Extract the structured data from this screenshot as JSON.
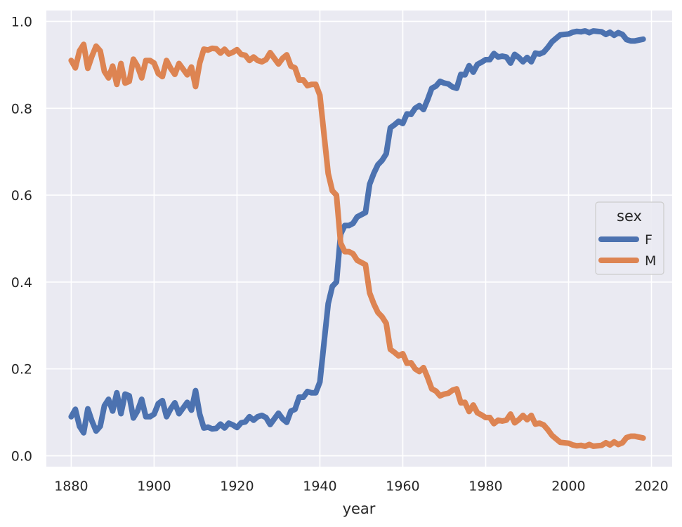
{
  "chart_data": {
    "type": "line",
    "xlabel": "year",
    "ylabel": "",
    "xlim": [
      1874,
      2025
    ],
    "ylim": [
      -0.025,
      1.025
    ],
    "xticks": [
      1880,
      1900,
      1920,
      1940,
      1960,
      1980,
      2000,
      2020
    ],
    "yticks": [
      0.0,
      0.2,
      0.4,
      0.6,
      0.8,
      1.0
    ],
    "xtick_labels": [
      "1880",
      "1900",
      "1920",
      "1940",
      "1960",
      "1980",
      "2000",
      "2020"
    ],
    "ytick_labels": [
      "0.0",
      "0.2",
      "0.4",
      "0.6",
      "0.8",
      "1.0"
    ],
    "grid": true,
    "legend": {
      "title": "sex",
      "placement": "center-right"
    },
    "colors": {
      "F": "#4c72b0",
      "M": "#dd8452",
      "background": "#eaeaf2",
      "grid": "#ffffff"
    },
    "series": [
      {
        "name": "F",
        "x": [
          1880,
          1881,
          1882,
          1883,
          1884,
          1885,
          1886,
          1887,
          1888,
          1889,
          1890,
          1891,
          1892,
          1893,
          1894,
          1895,
          1896,
          1897,
          1898,
          1899,
          1900,
          1901,
          1902,
          1903,
          1904,
          1905,
          1906,
          1907,
          1908,
          1909,
          1910,
          1911,
          1912,
          1913,
          1914,
          1915,
          1916,
          1917,
          1918,
          1919,
          1920,
          1921,
          1922,
          1923,
          1924,
          1925,
          1926,
          1927,
          1928,
          1929,
          1930,
          1931,
          1932,
          1933,
          1934,
          1935,
          1936,
          1937,
          1938,
          1939,
          1940,
          1941,
          1942,
          1943,
          1944,
          1945,
          1946,
          1947,
          1948,
          1949,
          1950,
          1951,
          1952,
          1953,
          1954,
          1955,
          1956,
          1957,
          1958,
          1959,
          1960,
          1961,
          1962,
          1963,
          1964,
          1965,
          1966,
          1967,
          1968,
          1969,
          1970,
          1971,
          1972,
          1973,
          1974,
          1975,
          1976,
          1977,
          1978,
          1979,
          1980,
          1981,
          1982,
          1983,
          1984,
          1985,
          1986,
          1987,
          1988,
          1989,
          1990,
          1991,
          1992,
          1993,
          1994,
          1995,
          1996,
          1997,
          1998,
          1999,
          2000,
          2001,
          2002,
          2003,
          2004,
          2005,
          2006,
          2007,
          2008,
          2009,
          2010,
          2011,
          2012,
          2013,
          2014,
          2015,
          2016,
          2017,
          2018
        ],
        "values": [
          0.09,
          0.107,
          0.068,
          0.053,
          0.108,
          0.08,
          0.057,
          0.068,
          0.115,
          0.13,
          0.103,
          0.145,
          0.097,
          0.142,
          0.138,
          0.087,
          0.103,
          0.13,
          0.09,
          0.09,
          0.096,
          0.12,
          0.127,
          0.09,
          0.108,
          0.122,
          0.097,
          0.11,
          0.123,
          0.105,
          0.15,
          0.096,
          0.064,
          0.066,
          0.062,
          0.063,
          0.073,
          0.064,
          0.075,
          0.071,
          0.065,
          0.076,
          0.078,
          0.09,
          0.082,
          0.09,
          0.093,
          0.088,
          0.072,
          0.085,
          0.098,
          0.085,
          0.077,
          0.103,
          0.107,
          0.135,
          0.135,
          0.148,
          0.145,
          0.145,
          0.17,
          0.26,
          0.35,
          0.39,
          0.4,
          0.51,
          0.53,
          0.53,
          0.535,
          0.55,
          0.555,
          0.56,
          0.625,
          0.65,
          0.67,
          0.68,
          0.695,
          0.755,
          0.762,
          0.77,
          0.765,
          0.787,
          0.786,
          0.8,
          0.806,
          0.797,
          0.82,
          0.846,
          0.851,
          0.862,
          0.858,
          0.856,
          0.849,
          0.846,
          0.878,
          0.877,
          0.898,
          0.883,
          0.901,
          0.906,
          0.912,
          0.912,
          0.926,
          0.918,
          0.92,
          0.918,
          0.904,
          0.924,
          0.917,
          0.907,
          0.917,
          0.907,
          0.927,
          0.925,
          0.929,
          0.94,
          0.953,
          0.961,
          0.969,
          0.97,
          0.971,
          0.975,
          0.977,
          0.976,
          0.978,
          0.974,
          0.978,
          0.977,
          0.976,
          0.97,
          0.975,
          0.968,
          0.974,
          0.97,
          0.958,
          0.955,
          0.955,
          0.957,
          0.959
        ]
      },
      {
        "name": "M",
        "x": [
          1880,
          1881,
          1882,
          1883,
          1884,
          1885,
          1886,
          1887,
          1888,
          1889,
          1890,
          1891,
          1892,
          1893,
          1894,
          1895,
          1896,
          1897,
          1898,
          1899,
          1900,
          1901,
          1902,
          1903,
          1904,
          1905,
          1906,
          1907,
          1908,
          1909,
          1910,
          1911,
          1912,
          1913,
          1914,
          1915,
          1916,
          1917,
          1918,
          1919,
          1920,
          1921,
          1922,
          1923,
          1924,
          1925,
          1926,
          1927,
          1928,
          1929,
          1930,
          1931,
          1932,
          1933,
          1934,
          1935,
          1936,
          1937,
          1938,
          1939,
          1940,
          1941,
          1942,
          1943,
          1944,
          1945,
          1946,
          1947,
          1948,
          1949,
          1950,
          1951,
          1952,
          1953,
          1954,
          1955,
          1956,
          1957,
          1958,
          1959,
          1960,
          1961,
          1962,
          1963,
          1964,
          1965,
          1966,
          1967,
          1968,
          1969,
          1970,
          1971,
          1972,
          1973,
          1974,
          1975,
          1976,
          1977,
          1978,
          1979,
          1980,
          1981,
          1982,
          1983,
          1984,
          1985,
          1986,
          1987,
          1988,
          1989,
          1990,
          1991,
          1992,
          1993,
          1994,
          1995,
          1996,
          1997,
          1998,
          1999,
          2000,
          2001,
          2002,
          2003,
          2004,
          2005,
          2006,
          2007,
          2008,
          2009,
          2010,
          2011,
          2012,
          2013,
          2014,
          2015,
          2016,
          2017,
          2018
        ],
        "values": [
          0.91,
          0.893,
          0.932,
          0.947,
          0.892,
          0.92,
          0.943,
          0.932,
          0.885,
          0.87,
          0.897,
          0.855,
          0.903,
          0.858,
          0.862,
          0.913,
          0.897,
          0.87,
          0.91,
          0.91,
          0.904,
          0.88,
          0.873,
          0.91,
          0.892,
          0.878,
          0.903,
          0.89,
          0.877,
          0.895,
          0.85,
          0.904,
          0.936,
          0.934,
          0.938,
          0.937,
          0.927,
          0.936,
          0.925,
          0.929,
          0.935,
          0.924,
          0.922,
          0.91,
          0.918,
          0.91,
          0.907,
          0.912,
          0.928,
          0.915,
          0.902,
          0.915,
          0.923,
          0.897,
          0.893,
          0.865,
          0.865,
          0.852,
          0.855,
          0.855,
          0.83,
          0.74,
          0.65,
          0.61,
          0.6,
          0.49,
          0.47,
          0.47,
          0.465,
          0.45,
          0.445,
          0.44,
          0.375,
          0.35,
          0.33,
          0.32,
          0.305,
          0.245,
          0.238,
          0.23,
          0.235,
          0.213,
          0.214,
          0.2,
          0.194,
          0.203,
          0.18,
          0.154,
          0.149,
          0.138,
          0.142,
          0.144,
          0.151,
          0.154,
          0.122,
          0.123,
          0.102,
          0.117,
          0.099,
          0.094,
          0.088,
          0.088,
          0.074,
          0.082,
          0.08,
          0.082,
          0.096,
          0.076,
          0.083,
          0.093,
          0.083,
          0.093,
          0.073,
          0.075,
          0.071,
          0.06,
          0.047,
          0.039,
          0.031,
          0.03,
          0.029,
          0.025,
          0.023,
          0.024,
          0.022,
          0.026,
          0.022,
          0.023,
          0.024,
          0.03,
          0.025,
          0.032,
          0.026,
          0.03,
          0.042,
          0.045,
          0.045,
          0.043,
          0.041
        ]
      }
    ]
  }
}
